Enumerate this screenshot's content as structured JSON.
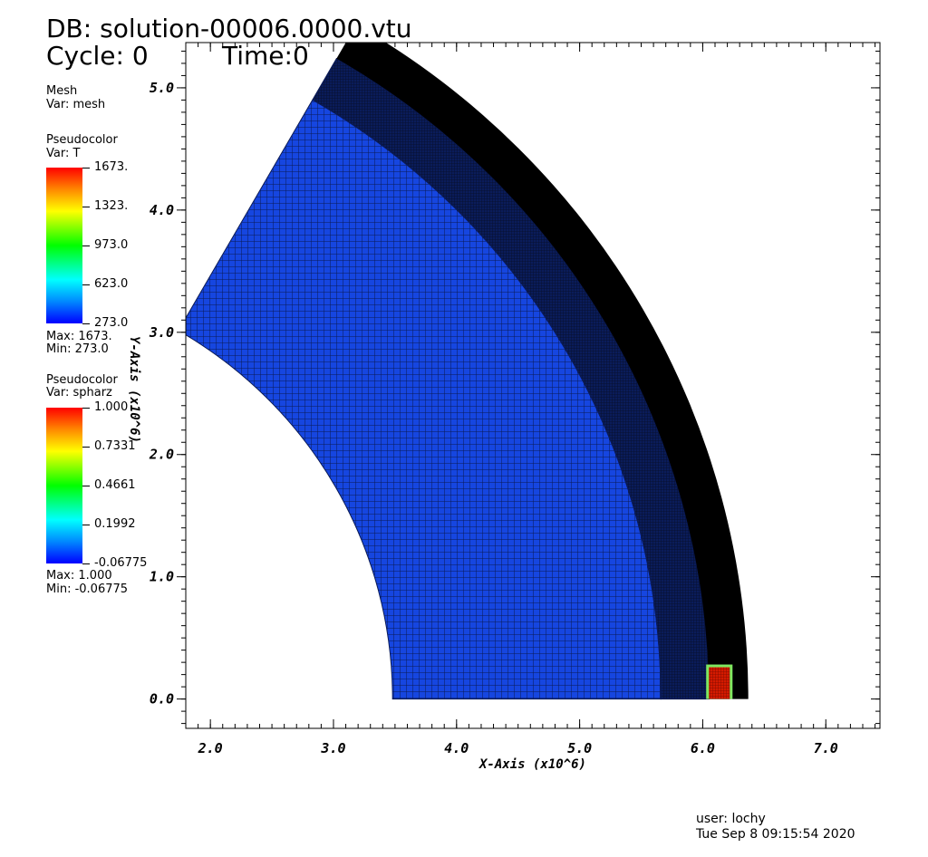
{
  "header": {
    "db_label": "DB: solution-00006.0000.vtu",
    "cycle_label": "Cycle: 0",
    "time_label": "Time:0"
  },
  "legend_mesh": {
    "title": "Mesh",
    "var": "Var: mesh"
  },
  "legend_T": {
    "title": "Pseudocolor",
    "var": "Var: T",
    "ticks": [
      "1673.",
      "1323.",
      "973.0",
      "623.0",
      "273.0"
    ],
    "max": "Max:  1673.",
    "min": "Min:  273.0"
  },
  "legend_spharz": {
    "title": "Pseudocolor",
    "var": "Var: spharz",
    "ticks": [
      "1.000",
      "0.7331",
      "0.4661",
      "0.1992",
      "-0.06775"
    ],
    "max": "Max:  1.000",
    "min": "Min:  -0.06775"
  },
  "footer": {
    "user": "user: lochy",
    "date": "Tue Sep  8 09:15:54 2020"
  },
  "colors": {
    "mesh_fill": "#1646e0",
    "mesh_line": "#0a1a55",
    "refined_zone": "#0a1c5a",
    "outer_rim": "#000000",
    "hot_spot": "#d41a00",
    "hot_spot_edge": "#7fe860"
  },
  "chart_data": {
    "type": "heatmap",
    "x_axis_label": "X-Axis (x10^6)",
    "y_axis_label": "Y-Axis (x10^6)",
    "x_ticks": [
      "2.0",
      "3.0",
      "4.0",
      "5.0",
      "6.0",
      "7.0"
    ],
    "y_ticks": [
      "0.0",
      "1.0",
      "2.0",
      "3.0",
      "4.0",
      "5.0"
    ],
    "xlim": [
      1.8,
      7.44
    ],
    "ylim": [
      -0.24,
      5.37
    ],
    "domain": {
      "shape": "annulus sector",
      "r_inner": 3.48,
      "r_outer": 6.37,
      "theta_deg": [
        0,
        60
      ],
      "r_refined_start": 5.66,
      "r_rim_start": 6.05
    },
    "hot_spot": {
      "x": [
        6.05,
        6.22
      ],
      "y": [
        0.0,
        0.26
      ]
    },
    "grid": false
  }
}
